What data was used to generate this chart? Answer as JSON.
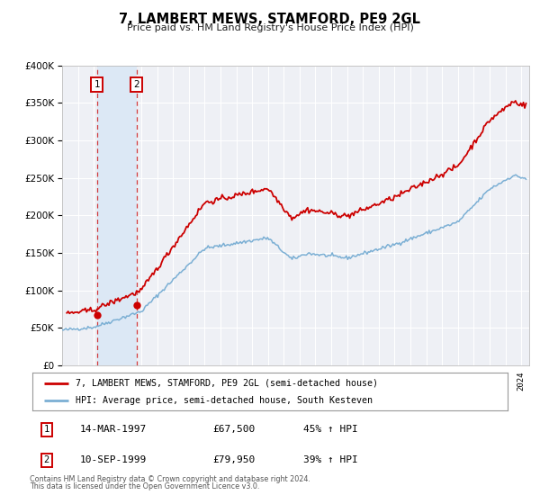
{
  "title": "7, LAMBERT MEWS, STAMFORD, PE9 2GL",
  "subtitle": "Price paid vs. HM Land Registry's House Price Index (HPI)",
  "legend_line1": "7, LAMBERT MEWS, STAMFORD, PE9 2GL (semi-detached house)",
  "legend_line2": "HPI: Average price, semi-detached house, South Kesteven",
  "footnote1": "Contains HM Land Registry data © Crown copyright and database right 2024.",
  "footnote2": "This data is licensed under the Open Government Licence v3.0.",
  "transaction1_date": "14-MAR-1997",
  "transaction1_price": "£67,500",
  "transaction1_hpi": "45% ↑ HPI",
  "transaction1_date_num": 1997.2,
  "transaction1_value": 67500,
  "transaction2_date": "10-SEP-1999",
  "transaction2_price": "£79,950",
  "transaction2_hpi": "39% ↑ HPI",
  "transaction2_date_num": 1999.69,
  "transaction2_value": 79950,
  "red_line_color": "#cc0000",
  "blue_line_color": "#7bafd4",
  "shaded_region_color": "#dce8f5",
  "plot_bg_color": "#eef0f5",
  "ylim_max": 400000,
  "ylim_min": 0,
  "xlim_min": 1995.0,
  "xlim_max": 2024.5
}
